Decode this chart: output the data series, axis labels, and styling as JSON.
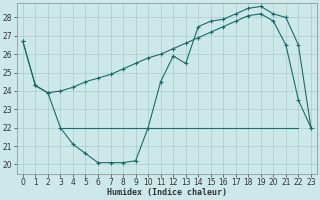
{
  "xlabel": "Humidex (Indice chaleur)",
  "bg_color": "#cce8e8",
  "line_color": "#1a6b6b",
  "grid_color": "#aacccc",
  "xlim": [
    -0.5,
    23.5
  ],
  "ylim": [
    19.5,
    28.8
  ],
  "yticks": [
    20,
    21,
    22,
    23,
    24,
    25,
    26,
    27,
    28
  ],
  "xticks": [
    0,
    1,
    2,
    3,
    4,
    5,
    6,
    7,
    8,
    9,
    10,
    11,
    12,
    13,
    14,
    15,
    16,
    17,
    18,
    19,
    20,
    21,
    22,
    23
  ],
  "line1_x": [
    0,
    1,
    2,
    3,
    4,
    5,
    6,
    7,
    8,
    9,
    10,
    11,
    12,
    13,
    14,
    15,
    16,
    17,
    18,
    19,
    20,
    21,
    22,
    23
  ],
  "line1_y": [
    26.7,
    24.3,
    23.9,
    24.0,
    24.2,
    24.5,
    24.7,
    24.9,
    25.2,
    25.5,
    25.8,
    26.0,
    26.3,
    26.6,
    26.9,
    27.2,
    27.5,
    27.8,
    28.1,
    28.2,
    27.8,
    26.5,
    23.5,
    22.0
  ],
  "line2_x": [
    0,
    1,
    2,
    3,
    4,
    5,
    6,
    7,
    8,
    9,
    10,
    11,
    12,
    13,
    14,
    15,
    16,
    17,
    18,
    19,
    20,
    21,
    22,
    23
  ],
  "line2_y": [
    26.7,
    24.3,
    23.9,
    22.0,
    21.1,
    20.6,
    20.1,
    20.1,
    20.1,
    20.2,
    22.0,
    24.5,
    25.9,
    25.5,
    27.5,
    27.8,
    27.9,
    28.2,
    28.5,
    28.6,
    28.2,
    28.0,
    26.5,
    22.0
  ],
  "line3_x": [
    3,
    10,
    19,
    22
  ],
  "line3_y": [
    22.0,
    22.0,
    22.0,
    22.0
  ],
  "label_fontsize": 6,
  "tick_fontsize": 5.5
}
